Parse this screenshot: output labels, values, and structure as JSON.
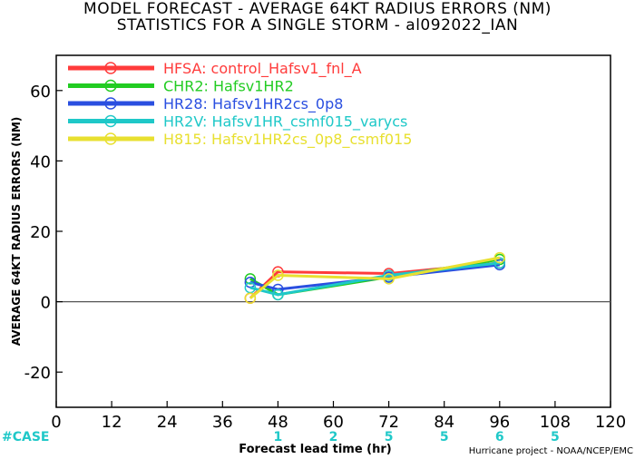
{
  "chart_data": {
    "type": "line",
    "title": "MODEL FORECAST - AVERAGE 64KT RADIUS ERRORS (NM)",
    "subtitle": "STATISTICS FOR A SINGLE STORM - al092022_IAN",
    "xlabel": "Forecast lead time (hr)",
    "ylabel": "AVERAGE 64KT RADIUS ERRORS (NM)",
    "xlim": [
      0,
      120
    ],
    "ylim": [
      -30,
      70
    ],
    "xticks": [
      0,
      12,
      24,
      36,
      48,
      60,
      72,
      84,
      96,
      108,
      120
    ],
    "yticks": [
      -20,
      0,
      20,
      40,
      60
    ],
    "case_label": "#CASE",
    "case_x": [
      48,
      60,
      72,
      84,
      96,
      108
    ],
    "case_counts": [
      "1",
      "2",
      "5",
      "5",
      "6",
      "5"
    ],
    "credit": "Hurricane project - NOAA/NCEP/EMC",
    "zero_line": true,
    "legend_position": "top-left",
    "series": [
      {
        "name": "HFSA: control_Hafsv1_fnl_A",
        "color": "#ff3b3b",
        "x": [
          42,
          48,
          72,
          96
        ],
        "values": [
          1,
          8.5,
          8,
          11
        ]
      },
      {
        "name": "CHR2: Hafsv1HR2",
        "color": "#22cc22",
        "x": [
          42,
          48,
          72,
          96
        ],
        "values": [
          6.5,
          2,
          7,
          12
        ]
      },
      {
        "name": "HR28: Hafsv1HR2cs_0p8",
        "color": "#2a4fe0",
        "x": [
          42,
          48,
          72,
          96
        ],
        "values": [
          5.5,
          3.5,
          7,
          10.5
        ]
      },
      {
        "name": "HR2V: Hafsv1HR_csmf015_varycs",
        "color": "#1fc8c8",
        "x": [
          42,
          48,
          72,
          96
        ],
        "values": [
          4,
          2,
          7.5,
          11
        ]
      },
      {
        "name": "H815: Hafsv1HR2cs_0p8_csmf015",
        "color": "#e8e030",
        "x": [
          42,
          48,
          72,
          96
        ],
        "values": [
          1,
          7.5,
          6.5,
          12.5
        ]
      }
    ]
  }
}
